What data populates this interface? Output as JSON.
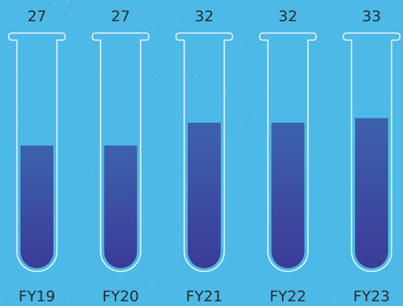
{
  "chart_data": {
    "type": "bar",
    "categories": [
      "FY19",
      "FY20",
      "FY21",
      "FY22",
      "FY23"
    ],
    "values": [
      27,
      27,
      32,
      32,
      33
    ],
    "title": "",
    "xlabel": "",
    "ylabel": "",
    "colors": {
      "background": "#4cb9e7",
      "tube_outline": "#e9f6fb",
      "fill_top": "#3d62ad",
      "fill_bottom": "#3b3b98",
      "text": "#2a2a2a"
    }
  }
}
